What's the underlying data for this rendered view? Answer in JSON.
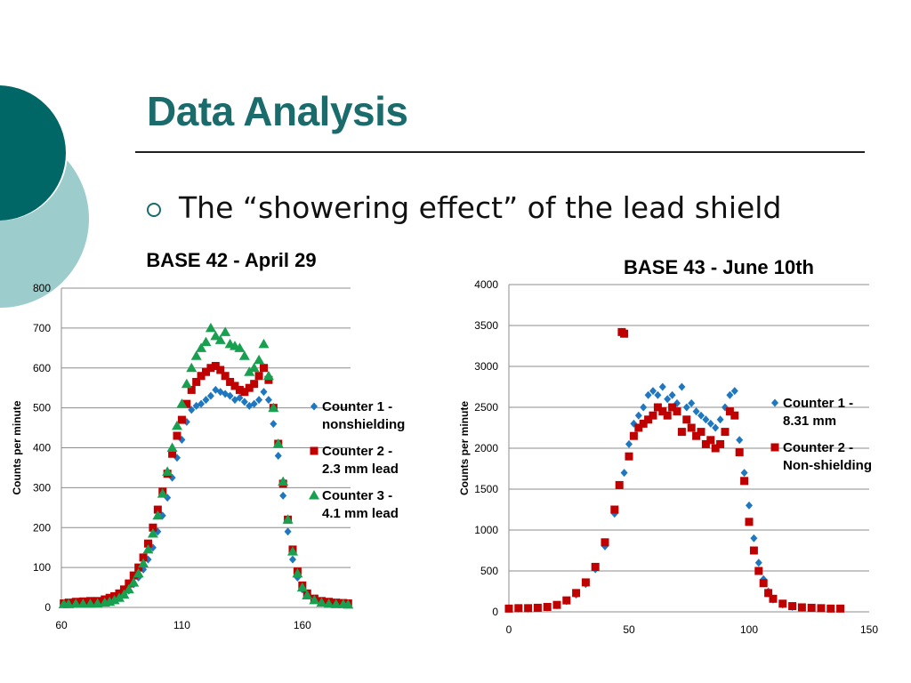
{
  "slide": {
    "title": "Data Analysis",
    "bullet": "The “showering effect” of the lead shield",
    "colors": {
      "accent_dark": "#006666",
      "accent_light": "#9ccccc",
      "title": "#1a6b6b"
    }
  },
  "chart_data": [
    {
      "type": "scatter",
      "title": "BASE 42 - April 29",
      "xlabel": "",
      "ylabel": "Counts per minute",
      "xlim": [
        60,
        180
      ],
      "ylim": [
        0,
        800
      ],
      "xticks": [
        60,
        110,
        160
      ],
      "yticks": [
        0,
        100,
        200,
        300,
        400,
        500,
        600,
        700,
        800
      ],
      "grid": true,
      "legend_position": "right",
      "series": [
        {
          "name": "Counter 1 - nonshielding",
          "color": "#1f77c0",
          "marker": "diamond",
          "points": [
            [
              61,
              8
            ],
            [
              63,
              9
            ],
            [
              66,
              9
            ],
            [
              69,
              10
            ],
            [
              72,
              9
            ],
            [
              75,
              10
            ],
            [
              78,
              12
            ],
            [
              80,
              15
            ],
            [
              82,
              18
            ],
            [
              84,
              24
            ],
            [
              86,
              32
            ],
            [
              88,
              42
            ],
            [
              90,
              58
            ],
            [
              92,
              75
            ],
            [
              94,
              95
            ],
            [
              96,
              120
            ],
            [
              98,
              150
            ],
            [
              100,
              190
            ],
            [
              102,
              230
            ],
            [
              104,
              275
            ],
            [
              106,
              325
            ],
            [
              108,
              375
            ],
            [
              110,
              420
            ],
            [
              112,
              465
            ],
            [
              114,
              495
            ],
            [
              116,
              505
            ],
            [
              118,
              510
            ],
            [
              120,
              520
            ],
            [
              122,
              530
            ],
            [
              124,
              545
            ],
            [
              126,
              540
            ],
            [
              128,
              535
            ],
            [
              130,
              530
            ],
            [
              132,
              520
            ],
            [
              134,
              525
            ],
            [
              136,
              515
            ],
            [
              138,
              505
            ],
            [
              140,
              510
            ],
            [
              142,
              520
            ],
            [
              144,
              540
            ],
            [
              146,
              520
            ],
            [
              148,
              460
            ],
            [
              150,
              380
            ],
            [
              152,
              280
            ],
            [
              154,
              190
            ],
            [
              156,
              120
            ],
            [
              158,
              75
            ],
            [
              160,
              45
            ],
            [
              162,
              30
            ],
            [
              165,
              18
            ],
            [
              168,
              12
            ],
            [
              171,
              10
            ],
            [
              174,
              9
            ],
            [
              177,
              8
            ],
            [
              179,
              8
            ]
          ]
        },
        {
          "name": "Counter 2 - 2.3 mm lead",
          "color": "#c00000",
          "marker": "square",
          "points": [
            [
              61,
              10
            ],
            [
              63,
              12
            ],
            [
              66,
              14
            ],
            [
              69,
              15
            ],
            [
              72,
              16
            ],
            [
              75,
              16
            ],
            [
              78,
              20
            ],
            [
              80,
              24
            ],
            [
              82,
              28
            ],
            [
              84,
              35
            ],
            [
              86,
              45
            ],
            [
              88,
              60
            ],
            [
              90,
              80
            ],
            [
              92,
              100
            ],
            [
              94,
              125
            ],
            [
              96,
              160
            ],
            [
              98,
              200
            ],
            [
              100,
              245
            ],
            [
              102,
              290
            ],
            [
              104,
              335
            ],
            [
              106,
              385
            ],
            [
              108,
              430
            ],
            [
              110,
              470
            ],
            [
              112,
              510
            ],
            [
              114,
              545
            ],
            [
              116,
              565
            ],
            [
              118,
              580
            ],
            [
              120,
              590
            ],
            [
              122,
              600
            ],
            [
              124,
              605
            ],
            [
              126,
              595
            ],
            [
              128,
              580
            ],
            [
              130,
              565
            ],
            [
              132,
              555
            ],
            [
              134,
              545
            ],
            [
              136,
              540
            ],
            [
              138,
              550
            ],
            [
              140,
              560
            ],
            [
              142,
              580
            ],
            [
              144,
              600
            ],
            [
              146,
              570
            ],
            [
              148,
              500
            ],
            [
              150,
              410
            ],
            [
              152,
              310
            ],
            [
              154,
              220
            ],
            [
              156,
              145
            ],
            [
              158,
              90
            ],
            [
              160,
              55
            ],
            [
              162,
              35
            ],
            [
              165,
              22
            ],
            [
              168,
              16
            ],
            [
              171,
              14
            ],
            [
              174,
              12
            ],
            [
              177,
              11
            ],
            [
              179,
              10
            ]
          ]
        },
        {
          "name": "Counter 3 - 4.1 mm lead",
          "color": "#18a050",
          "marker": "triangle",
          "points": [
            [
              61,
              8
            ],
            [
              63,
              8
            ],
            [
              66,
              9
            ],
            [
              69,
              9
            ],
            [
              72,
              9
            ],
            [
              75,
              10
            ],
            [
              78,
              12
            ],
            [
              80,
              14
            ],
            [
              82,
              18
            ],
            [
              84,
              24
            ],
            [
              86,
              32
            ],
            [
              88,
              45
            ],
            [
              90,
              62
            ],
            [
              92,
              85
            ],
            [
              94,
              110
            ],
            [
              96,
              145
            ],
            [
              98,
              185
            ],
            [
              100,
              230
            ],
            [
              102,
              285
            ],
            [
              104,
              340
            ],
            [
              106,
              400
            ],
            [
              108,
              455
            ],
            [
              110,
              510
            ],
            [
              112,
              560
            ],
            [
              114,
              600
            ],
            [
              116,
              630
            ],
            [
              118,
              650
            ],
            [
              120,
              665
            ],
            [
              122,
              700
            ],
            [
              124,
              680
            ],
            [
              126,
              670
            ],
            [
              128,
              690
            ],
            [
              130,
              660
            ],
            [
              132,
              655
            ],
            [
              134,
              650
            ],
            [
              136,
              630
            ],
            [
              138,
              590
            ],
            [
              140,
              600
            ],
            [
              142,
              620
            ],
            [
              144,
              660
            ],
            [
              146,
              580
            ],
            [
              148,
              500
            ],
            [
              150,
              410
            ],
            [
              152,
              315
            ],
            [
              154,
              220
            ],
            [
              156,
              140
            ],
            [
              158,
              85
            ],
            [
              160,
              50
            ],
            [
              162,
              30
            ],
            [
              165,
              18
            ],
            [
              168,
              12
            ],
            [
              171,
              9
            ],
            [
              174,
              8
            ],
            [
              177,
              8
            ],
            [
              179,
              7
            ]
          ]
        }
      ]
    },
    {
      "type": "scatter",
      "title": "BASE 43 - June 10th",
      "xlabel": "",
      "ylabel": "Counts per minute",
      "xlim": [
        0,
        150
      ],
      "ylim": [
        0,
        4000
      ],
      "xticks": [
        0,
        50,
        100,
        150
      ],
      "yticks": [
        0,
        500,
        1000,
        1500,
        2000,
        2500,
        3000,
        3500,
        4000
      ],
      "grid": true,
      "legend_position": "right",
      "series": [
        {
          "name": "Counter 1 - 8.31 mm",
          "color": "#1f77c0",
          "marker": "diamond",
          "points": [
            [
              0,
              40
            ],
            [
              4,
              40
            ],
            [
              8,
              40
            ],
            [
              12,
              45
            ],
            [
              16,
              55
            ],
            [
              20,
              80
            ],
            [
              24,
              130
            ],
            [
              28,
              210
            ],
            [
              32,
              340
            ],
            [
              36,
              520
            ],
            [
              40,
              800
            ],
            [
              44,
              1200
            ],
            [
              48,
              1700
            ],
            [
              50,
              2050
            ],
            [
              52,
              2300
            ],
            [
              54,
              2400
            ],
            [
              56,
              2500
            ],
            [
              58,
              2650
            ],
            [
              60,
              2700
            ],
            [
              62,
              2650
            ],
            [
              64,
              2750
            ],
            [
              66,
              2600
            ],
            [
              68,
              2650
            ],
            [
              70,
              2550
            ],
            [
              72,
              2750
            ],
            [
              74,
              2500
            ],
            [
              76,
              2550
            ],
            [
              78,
              2450
            ],
            [
              80,
              2400
            ],
            [
              82,
              2350
            ],
            [
              84,
              2300
            ],
            [
              86,
              2250
            ],
            [
              88,
              2350
            ],
            [
              90,
              2500
            ],
            [
              92,
              2650
            ],
            [
              94,
              2700
            ],
            [
              96,
              2100
            ],
            [
              98,
              1700
            ],
            [
              100,
              1300
            ],
            [
              102,
              900
            ],
            [
              104,
              600
            ],
            [
              106,
              400
            ],
            [
              108,
              250
            ],
            [
              110,
              150
            ],
            [
              114,
              90
            ],
            [
              118,
              60
            ],
            [
              122,
              50
            ],
            [
              126,
              45
            ],
            [
              130,
              45
            ],
            [
              134,
              40
            ],
            [
              138,
              40
            ]
          ]
        },
        {
          "name": "Counter 2 - Non-shielding",
          "color": "#c00000",
          "marker": "square",
          "points": [
            [
              0,
              40
            ],
            [
              4,
              45
            ],
            [
              8,
              45
            ],
            [
              12,
              50
            ],
            [
              16,
              60
            ],
            [
              20,
              85
            ],
            [
              24,
              140
            ],
            [
              28,
              230
            ],
            [
              32,
              360
            ],
            [
              36,
              550
            ],
            [
              40,
              850
            ],
            [
              44,
              1250
            ],
            [
              46,
              1550
            ],
            [
              47,
              3420
            ],
            [
              48,
              3400
            ],
            [
              50,
              1900
            ],
            [
              52,
              2150
            ],
            [
              54,
              2250
            ],
            [
              56,
              2300
            ],
            [
              58,
              2350
            ],
            [
              60,
              2400
            ],
            [
              62,
              2500
            ],
            [
              64,
              2450
            ],
            [
              66,
              2400
            ],
            [
              68,
              2500
            ],
            [
              70,
              2450
            ],
            [
              72,
              2200
            ],
            [
              74,
              2350
            ],
            [
              76,
              2250
            ],
            [
              78,
              2150
            ],
            [
              80,
              2200
            ],
            [
              82,
              2050
            ],
            [
              84,
              2100
            ],
            [
              86,
              2000
            ],
            [
              88,
              2050
            ],
            [
              90,
              2200
            ],
            [
              92,
              2450
            ],
            [
              94,
              2400
            ],
            [
              96,
              1950
            ],
            [
              98,
              1600
            ],
            [
              100,
              1100
            ],
            [
              102,
              750
            ],
            [
              104,
              500
            ],
            [
              106,
              350
            ],
            [
              108,
              230
            ],
            [
              110,
              160
            ],
            [
              114,
              100
            ],
            [
              118,
              70
            ],
            [
              122,
              55
            ],
            [
              126,
              50
            ],
            [
              130,
              45
            ],
            [
              134,
              40
            ],
            [
              138,
              40
            ]
          ]
        }
      ]
    }
  ]
}
